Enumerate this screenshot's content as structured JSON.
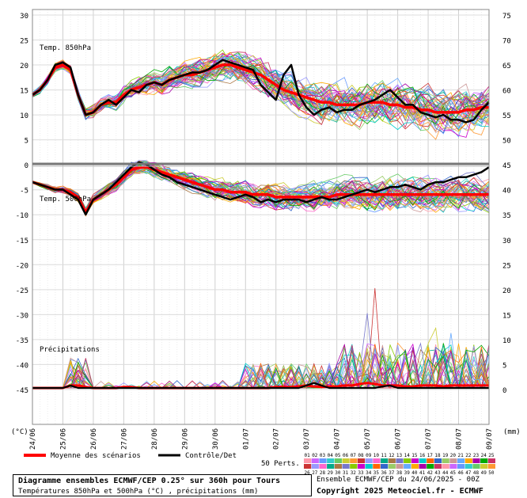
{
  "chart_data": {
    "type": "line",
    "x_dates": [
      "24/06",
      "25/06",
      "26/06",
      "27/06",
      "28/06",
      "29/06",
      "30/06",
      "01/07",
      "02/07",
      "03/07",
      "04/07",
      "05/07",
      "06/07",
      "07/07",
      "08/07",
      "09/07"
    ],
    "x_step_hours": 6,
    "y_left_ticks": [
      30,
      25,
      20,
      15,
      10,
      5,
      0,
      -5,
      -10,
      -15,
      -20,
      -25,
      -30,
      -35,
      -40,
      -45
    ],
    "y_right_ticks": [
      75,
      70,
      65,
      60,
      55,
      50,
      45,
      40,
      35,
      30,
      25,
      20,
      15,
      10,
      5,
      0
    ],
    "left_unit": "(°C)",
    "right_unit": "(mm)",
    "panels": [
      {
        "label": "Temp. 850hPa"
      },
      {
        "label": "Temp. 500hPa"
      },
      {
        "label": "Précipitations"
      }
    ],
    "series": [
      {
        "name": "Moyenne des scénarios",
        "color": "#ff0000",
        "t850": [
          14,
          15,
          17,
          19.5,
          20,
          19,
          14,
          10,
          10.5,
          12,
          12.5,
          12.5,
          14,
          15,
          15.5,
          16,
          16.5,
          16,
          17,
          17.5,
          18,
          18,
          18.5,
          19,
          19.5,
          20,
          20,
          19.5,
          19,
          18.5,
          18,
          17,
          16,
          15,
          14.5,
          14,
          13.5,
          13,
          12.5,
          12.5,
          12,
          12,
          12,
          12,
          12.5,
          12.5,
          12.5,
          12,
          12,
          11.5,
          11.5,
          11,
          11,
          10.5,
          10.5,
          10.5,
          10.5,
          11,
          11,
          11.5,
          11.5
        ],
        "t500": [
          -8.5,
          -9,
          -9.5,
          -10,
          -10,
          -10.5,
          -11.5,
          -14.5,
          -12,
          -11,
          -10,
          -9,
          -7.5,
          -6,
          -5.5,
          -5.5,
          -6,
          -6.5,
          -7,
          -7.5,
          -8,
          -8.5,
          -9,
          -9.5,
          -10,
          -10,
          -10.5,
          -10.5,
          -10.5,
          -11,
          -11,
          -11,
          -11.5,
          -11.5,
          -11.5,
          -11.5,
          -11.5,
          -11.5,
          -11.5,
          -11.5,
          -11,
          -11,
          -11,
          -11,
          -11,
          -11,
          -11,
          -11,
          -11,
          -11,
          -11,
          -11,
          -11,
          -11,
          -11,
          -11,
          -11,
          -11,
          -11,
          -11,
          -11
        ],
        "precip": [
          0,
          0,
          0,
          0,
          0,
          0.5,
          0.5,
          0.2,
          0,
          0,
          0,
          0,
          0.2,
          0.2,
          0,
          0,
          0,
          0,
          0,
          0,
          0,
          0,
          0,
          0,
          0,
          0,
          0,
          0,
          0,
          0,
          0,
          0,
          0.2,
          0.2,
          0.2,
          0.3,
          0.5,
          0.3,
          0.2,
          0.3,
          0.3,
          0.5,
          0.5,
          0.8,
          1,
          0.8,
          0.5,
          0.5,
          0.5,
          0.3,
          0.3,
          0.5,
          0.5,
          0.5,
          0.3,
          0.5,
          0.5,
          0.5,
          0.5,
          0.5,
          0.5
        ]
      },
      {
        "name": "Contrôle/Det",
        "color": "#000000",
        "t850": [
          14,
          15,
          17,
          20,
          20.5,
          19.5,
          14,
          10,
          10.5,
          12,
          13,
          12,
          13.5,
          15,
          14.5,
          16,
          16.5,
          16,
          17,
          17.5,
          18,
          18.5,
          18.5,
          19,
          20,
          21,
          20.5,
          20,
          19.5,
          19,
          16,
          14.5,
          13,
          18,
          20,
          14,
          11.5,
          10,
          11,
          11.5,
          10.5,
          11,
          11,
          12,
          12.5,
          13,
          14,
          15,
          13.5,
          12,
          12,
          10.5,
          10,
          9.5,
          10,
          9,
          9,
          8.5,
          9,
          11,
          12.5
        ],
        "t500": [
          -8.5,
          -9,
          -9.5,
          -10,
          -10,
          -11,
          -12,
          -15,
          -12,
          -11,
          -10,
          -8.5,
          -7,
          -5.5,
          -4.5,
          -5,
          -6,
          -7,
          -7.5,
          -8.5,
          -9,
          -9.5,
          -10,
          -10.5,
          -11,
          -11.5,
          -12,
          -11.5,
          -11,
          -11.5,
          -12.5,
          -12,
          -12.5,
          -12,
          -12,
          -12,
          -12.5,
          -12,
          -11.5,
          -12,
          -12,
          -11.5,
          -11,
          -10.5,
          -10,
          -10.5,
          -10,
          -9.5,
          -9.5,
          -9,
          -9.5,
          -10,
          -9,
          -8.5,
          -8.5,
          -8,
          -7.5,
          -7.5,
          -7,
          -6.5,
          -5.5
        ],
        "precip": [
          0,
          0,
          0,
          0,
          0,
          0.5,
          0,
          0,
          0,
          0,
          0,
          0,
          0,
          0,
          0,
          0,
          0,
          0,
          0,
          0,
          0,
          0,
          0,
          0,
          0,
          0,
          0,
          0,
          0,
          0,
          0,
          0,
          0,
          0,
          0,
          0,
          0.5,
          1,
          0.5,
          0,
          0,
          0,
          0,
          0,
          0,
          0,
          0.3,
          0.5,
          0,
          0,
          0,
          0,
          0,
          0,
          0,
          0,
          0,
          0,
          0,
          0,
          0
        ]
      }
    ],
    "legend": {
      "mean_label": "Moyenne des scénarios",
      "control_label": "Contrôle/Det",
      "perts_label": "50 Perts.",
      "members_top": [
        "01",
        "02",
        "03",
        "04",
        "05",
        "06",
        "07",
        "08",
        "09",
        "10",
        "11",
        "12",
        "13",
        "14",
        "15",
        "16",
        "17",
        "18",
        "19",
        "20",
        "21",
        "22",
        "23",
        "24",
        "25"
      ],
      "members_bottom": [
        "26",
        "27",
        "28",
        "29",
        "30",
        "31",
        "32",
        "33",
        "34",
        "35",
        "36",
        "37",
        "38",
        "39",
        "40",
        "41",
        "42",
        "43",
        "44",
        "45",
        "46",
        "47",
        "48",
        "49",
        "50"
      ],
      "member_colors": [
        "#ff99aa",
        "#cc66ff",
        "#6699ff",
        "#33cccc",
        "#66cc66",
        "#cccc33",
        "#ff9933",
        "#cc3333",
        "#9999ff",
        "#ff66cc",
        "#00aa88",
        "#aa7744",
        "#7777cc",
        "#88cc00",
        "#cc00cc",
        "#00cccc",
        "#ff6600",
        "#3366cc",
        "#99cc66",
        "#cc9999",
        "#66aaff",
        "#ffaa00",
        "#aa00aa",
        "#00aa00",
        "#cc3366"
      ]
    },
    "footer": {
      "title": "Diagramme ensembles ECMWF/CEP 0.25° sur 360h pour Tours",
      "subtitle": "Températures 850hPa et 500hPa (°C) , précipitations (mm)",
      "run": "Ensemble ECMWF/CEP du 24/06/2025 - 00Z",
      "copyright": "Copyright 2025 Meteociel.fr - ECMWF"
    }
  }
}
